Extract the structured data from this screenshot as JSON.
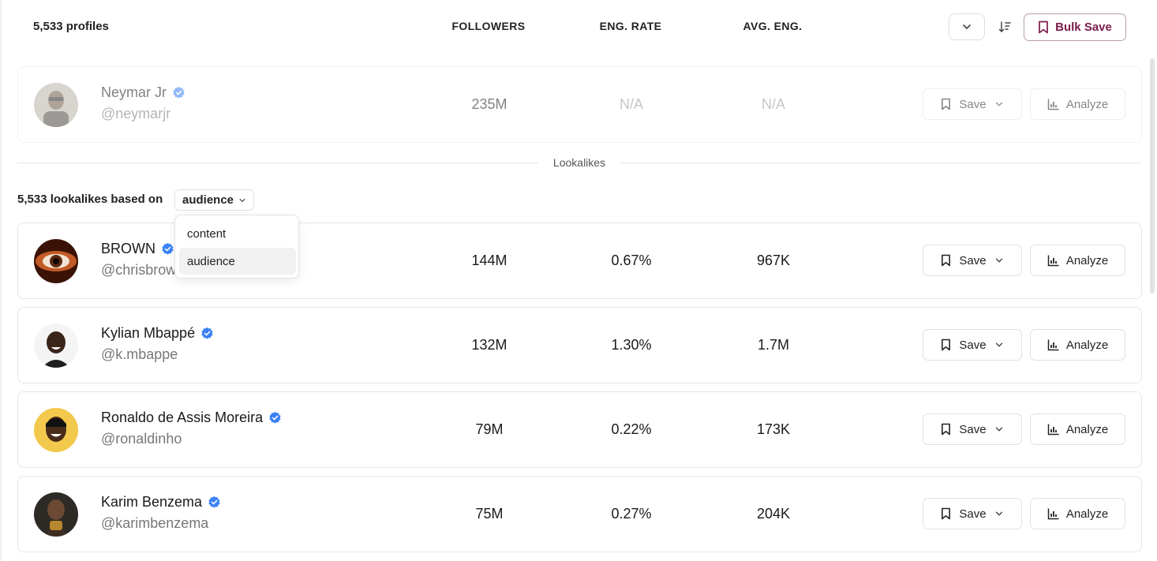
{
  "header": {
    "profiles_count": "5,533 profiles",
    "columns": {
      "followers": "FOLLOWERS",
      "eng_rate": "ENG. RATE",
      "avg_eng": "AVG. ENG."
    },
    "bulk_save_label": "Bulk Save"
  },
  "seed_profile": {
    "name": "Neymar Jr",
    "handle": "@neymarjr",
    "followers": "235M",
    "eng_rate": "N/A",
    "avg_eng": "N/A",
    "verified": true
  },
  "divider_label": "Lookalikes",
  "lookalikes": {
    "summary": "5,533 lookalikes based on",
    "basis_selected": "audience",
    "basis_options": [
      "content",
      "audience"
    ]
  },
  "buttons": {
    "save_label": "Save",
    "analyze_label": "Analyze"
  },
  "profiles": [
    {
      "name": "BROWN",
      "handle": "@chrisbrown",
      "followers": "144M",
      "eng_rate": "0.67%",
      "avg_eng": "967K",
      "verified": true
    },
    {
      "name": "Kylian Mbappé",
      "handle": "@k.mbappe",
      "followers": "132M",
      "eng_rate": "1.30%",
      "avg_eng": "1.7M",
      "verified": true
    },
    {
      "name": "Ronaldo de Assis Moreira",
      "handle": "@ronaldinho",
      "followers": "79M",
      "eng_rate": "0.22%",
      "avg_eng": "173K",
      "verified": true
    },
    {
      "name": "Karim Benzema",
      "handle": "@karimbenzema",
      "followers": "75M",
      "eng_rate": "0.27%",
      "avg_eng": "204K",
      "verified": true
    }
  ],
  "colors": {
    "accent": "#7b1b4a",
    "verified": "#3b82f6"
  }
}
